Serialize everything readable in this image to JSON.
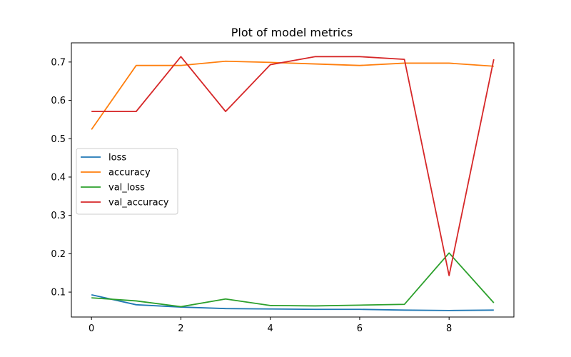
{
  "chart_data": {
    "type": "line",
    "title": "Plot of model metrics",
    "xlabel": "",
    "ylabel": "",
    "xlim": [
      -0.45,
      9.45
    ],
    "ylim": [
      0.035,
      0.75
    ],
    "xticks": [
      0,
      2,
      4,
      6,
      8
    ],
    "yticks": [
      0.1,
      0.2,
      0.3,
      0.4,
      0.5,
      0.6,
      0.7
    ],
    "grid": false,
    "legend_position": "center-left",
    "x": [
      0,
      1,
      2,
      3,
      4,
      5,
      6,
      7,
      8,
      9
    ],
    "series": [
      {
        "name": "loss",
        "color": "#1f77b4",
        "values": [
          0.093,
          0.067,
          0.061,
          0.057,
          0.056,
          0.055,
          0.055,
          0.053,
          0.052,
          0.053
        ]
      },
      {
        "name": "accuracy",
        "color": "#ff7f0e",
        "values": [
          0.524,
          0.691,
          0.691,
          0.702,
          0.699,
          0.695,
          0.691,
          0.697,
          0.697,
          0.689
        ]
      },
      {
        "name": "val_loss",
        "color": "#2ca02c",
        "values": [
          0.085,
          0.077,
          0.062,
          0.082,
          0.065,
          0.064,
          0.066,
          0.068,
          0.202,
          0.072
        ]
      },
      {
        "name": "val_accuracy",
        "color": "#d62728",
        "values": [
          0.571,
          0.571,
          0.714,
          0.571,
          0.693,
          0.714,
          0.714,
          0.707,
          0.143,
          0.707
        ]
      }
    ]
  }
}
